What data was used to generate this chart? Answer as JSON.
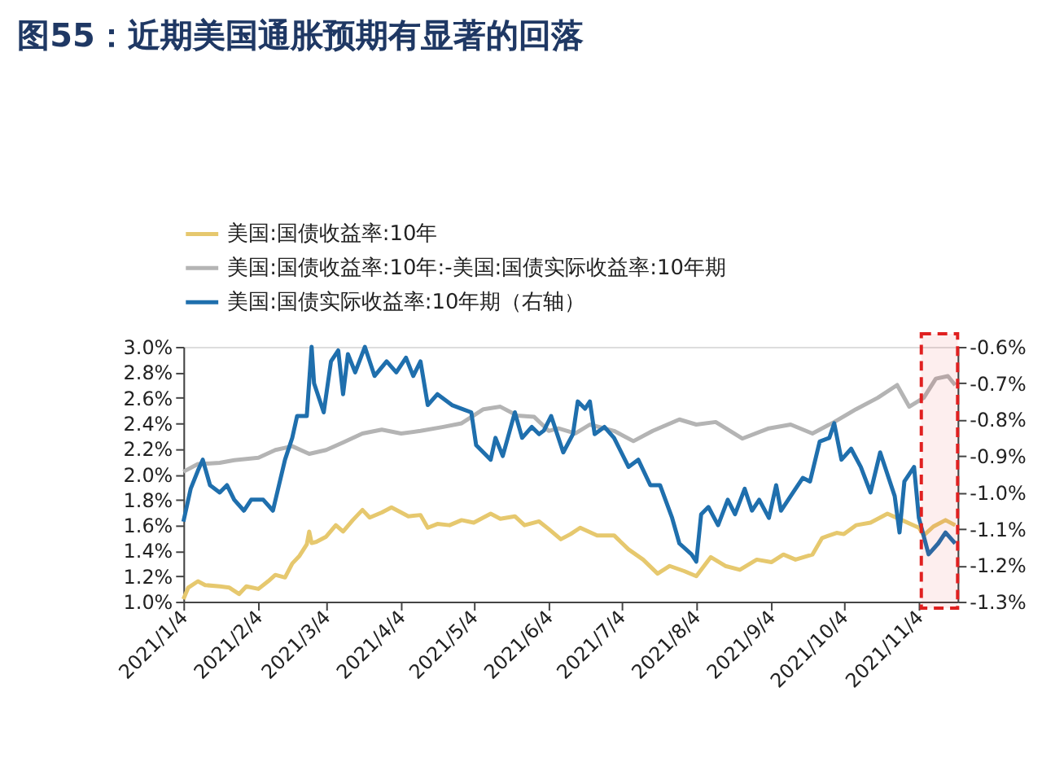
{
  "chart_data": {
    "type": "line",
    "title": "图55：近期美国通胀预期有显著的回落",
    "xlim": [
      "2021-01-04",
      "2021-11-20"
    ],
    "xticks": [
      {
        "value": "2021-01-04",
        "label": "2021/1/4"
      },
      {
        "value": "2021-02-04",
        "label": "2021/2/4"
      },
      {
        "value": "2021-03-04",
        "label": "2021/3/4"
      },
      {
        "value": "2021-04-04",
        "label": "2021/4/4"
      },
      {
        "value": "2021-05-04",
        "label": "2021/5/4"
      },
      {
        "value": "2021-06-04",
        "label": "2021/6/4"
      },
      {
        "value": "2021-07-04",
        "label": "2021/7/4"
      },
      {
        "value": "2021-08-04",
        "label": "2021/8/4"
      },
      {
        "value": "2021-09-04",
        "label": "2021/9/4"
      },
      {
        "value": "2021-10-04",
        "label": "2021/10/4"
      },
      {
        "value": "2021-11-04",
        "label": "2021/11/4"
      }
    ],
    "ylim": [
      1.0,
      3.0
    ],
    "yticks": [
      {
        "value": 1.0,
        "label": "1.0%"
      },
      {
        "value": 1.2,
        "label": "1.2%"
      },
      {
        "value": 1.4,
        "label": "1.4%"
      },
      {
        "value": 1.6,
        "label": "1.6%"
      },
      {
        "value": 1.8,
        "label": "1.8%"
      },
      {
        "value": 2.0,
        "label": "2.0%"
      },
      {
        "value": 2.2,
        "label": "2.2%"
      },
      {
        "value": 2.4,
        "label": "2.4%"
      },
      {
        "value": 2.6,
        "label": "2.6%"
      },
      {
        "value": 2.8,
        "label": "2.8%"
      },
      {
        "value": 3.0,
        "label": "3.0%"
      }
    ],
    "y2lim": [
      -1.3,
      -0.6
    ],
    "y2ticks": [
      {
        "value": -1.3,
        "label": "-1.3%"
      },
      {
        "value": -1.2,
        "label": "-1.2%"
      },
      {
        "value": -1.1,
        "label": "-1.1%"
      },
      {
        "value": -1.0,
        "label": "-1.0%"
      },
      {
        "value": -0.9,
        "label": "-0.9%"
      },
      {
        "value": -0.8,
        "label": "-0.8%"
      },
      {
        "value": -0.7,
        "label": "-0.7%"
      },
      {
        "value": -0.6,
        "label": "-0.6%"
      }
    ],
    "grid": false,
    "legend": "top",
    "bands": [
      {
        "axis": "x",
        "from": "2021-11-05",
        "to": "2021-11-20",
        "color": "#e02020"
      }
    ],
    "series": [
      {
        "name": "美国:国债收益率:10年",
        "color": "#e6c86e",
        "x": [
          "2021-01-04",
          "2021-01-06",
          "2021-01-10",
          "2021-01-13",
          "2021-01-19",
          "2021-01-23",
          "2021-01-27",
          "2021-01-30",
          "2021-02-04",
          "2021-02-08",
          "2021-02-11",
          "2021-02-15",
          "2021-02-18",
          "2021-02-21",
          "2021-02-24",
          "2021-02-25",
          "2021-02-26",
          "2021-02-28",
          "2021-03-04",
          "2021-03-08",
          "2021-03-11",
          "2021-03-15",
          "2021-03-19",
          "2021-03-22",
          "2021-03-27",
          "2021-03-31",
          "2021-04-04",
          "2021-04-07",
          "2021-04-12",
          "2021-04-15",
          "2021-04-19",
          "2021-04-24",
          "2021-04-29",
          "2021-05-04",
          "2021-05-11",
          "2021-05-15",
          "2021-05-21",
          "2021-05-25",
          "2021-05-31",
          "2021-06-04",
          "2021-06-09",
          "2021-06-13",
          "2021-06-17",
          "2021-06-24",
          "2021-07-01",
          "2021-07-07",
          "2021-07-13",
          "2021-07-19",
          "2021-07-24",
          "2021-07-30",
          "2021-08-04",
          "2021-08-10",
          "2021-08-16",
          "2021-08-22",
          "2021-08-29",
          "2021-09-04",
          "2021-09-09",
          "2021-09-14",
          "2021-09-21",
          "2021-09-25",
          "2021-10-01",
          "2021-10-04",
          "2021-10-09",
          "2021-10-15",
          "2021-10-22",
          "2021-10-28",
          "2021-11-04",
          "2021-11-06",
          "2021-11-10",
          "2021-11-15",
          "2021-11-19"
        ],
        "values": [
          1.02,
          1.11,
          1.16,
          1.13,
          1.12,
          1.11,
          1.06,
          1.12,
          1.1,
          1.16,
          1.21,
          1.19,
          1.3,
          1.36,
          1.45,
          1.55,
          1.46,
          1.47,
          1.51,
          1.6,
          1.55,
          1.64,
          1.72,
          1.66,
          1.7,
          1.74,
          1.7,
          1.67,
          1.68,
          1.58,
          1.61,
          1.6,
          1.64,
          1.62,
          1.69,
          1.65,
          1.67,
          1.6,
          1.63,
          1.57,
          1.49,
          1.53,
          1.58,
          1.52,
          1.52,
          1.41,
          1.33,
          1.22,
          1.28,
          1.24,
          1.2,
          1.35,
          1.28,
          1.25,
          1.33,
          1.31,
          1.37,
          1.33,
          1.37,
          1.5,
          1.54,
          1.53,
          1.6,
          1.62,
          1.69,
          1.64,
          1.58,
          1.52,
          1.59,
          1.64,
          1.6
        ]
      },
      {
        "name": "美国:国债收益率:10年:-美国:国债实际收益率:10年期",
        "color": "#b4b4b4",
        "x": [
          "2021-01-04",
          "2021-01-10",
          "2021-01-19",
          "2021-01-25",
          "2021-02-04",
          "2021-02-11",
          "2021-02-18",
          "2021-02-25",
          "2021-03-04",
          "2021-03-11",
          "2021-03-19",
          "2021-03-27",
          "2021-04-04",
          "2021-04-12",
          "2021-04-21",
          "2021-04-29",
          "2021-05-08",
          "2021-05-15",
          "2021-05-22",
          "2021-05-29",
          "2021-06-04",
          "2021-06-08",
          "2021-06-15",
          "2021-06-21",
          "2021-07-01",
          "2021-07-09",
          "2021-07-17",
          "2021-07-28",
          "2021-08-04",
          "2021-08-12",
          "2021-08-23",
          "2021-09-03",
          "2021-09-12",
          "2021-09-21",
          "2021-09-30",
          "2021-10-09",
          "2021-10-18",
          "2021-10-26",
          "2021-10-31",
          "2021-11-06",
          "2021-11-11",
          "2021-11-16",
          "2021-11-19"
        ],
        "values": [
          2.02,
          2.08,
          2.09,
          2.11,
          2.13,
          2.19,
          2.22,
          2.16,
          2.19,
          2.25,
          2.32,
          2.35,
          2.32,
          2.34,
          2.37,
          2.4,
          2.51,
          2.53,
          2.46,
          2.45,
          2.34,
          2.36,
          2.32,
          2.39,
          2.34,
          2.26,
          2.34,
          2.43,
          2.39,
          2.41,
          2.28,
          2.36,
          2.39,
          2.32,
          2.41,
          2.51,
          2.6,
          2.7,
          2.53,
          2.6,
          2.75,
          2.77,
          2.7
        ]
      },
      {
        "name": "美国:国债实际收益率:10年期（右轴）",
        "color": "#1f6fad",
        "axis": "y2",
        "x": [
          "2021-01-04",
          "2021-01-07",
          "2021-01-10",
          "2021-01-12",
          "2021-01-15",
          "2021-01-19",
          "2021-01-22",
          "2021-01-25",
          "2021-01-29",
          "2021-02-01",
          "2021-02-06",
          "2021-02-10",
          "2021-02-15",
          "2021-02-18",
          "2021-02-20",
          "2021-02-24",
          "2021-02-26",
          "2021-02-27",
          "2021-03-03",
          "2021-03-06",
          "2021-03-09",
          "2021-03-11",
          "2021-03-13",
          "2021-03-16",
          "2021-03-20",
          "2021-03-24",
          "2021-03-29",
          "2021-04-02",
          "2021-04-06",
          "2021-04-09",
          "2021-04-12",
          "2021-04-15",
          "2021-04-19",
          "2021-04-25",
          "2021-04-29",
          "2021-05-03",
          "2021-05-05",
          "2021-05-11",
          "2021-05-13",
          "2021-05-16",
          "2021-05-21",
          "2021-05-24",
          "2021-05-28",
          "2021-05-31",
          "2021-06-02",
          "2021-06-05",
          "2021-06-08",
          "2021-06-10",
          "2021-06-14",
          "2021-06-16",
          "2021-06-19",
          "2021-06-21",
          "2021-06-23",
          "2021-06-27",
          "2021-07-01",
          "2021-07-07",
          "2021-07-11",
          "2021-07-16",
          "2021-07-20",
          "2021-07-25",
          "2021-07-28",
          "2021-08-02",
          "2021-08-04",
          "2021-08-06",
          "2021-08-09",
          "2021-08-13",
          "2021-08-17",
          "2021-08-20",
          "2021-08-24",
          "2021-08-27",
          "2021-08-30",
          "2021-09-03",
          "2021-09-06",
          "2021-09-08",
          "2021-09-13",
          "2021-09-17",
          "2021-09-20",
          "2021-09-24",
          "2021-09-28",
          "2021-09-30",
          "2021-10-03",
          "2021-10-07",
          "2021-10-11",
          "2021-10-15",
          "2021-10-19",
          "2021-10-25",
          "2021-10-27",
          "2021-10-29",
          "2021-11-02",
          "2021-11-04",
          "2021-11-08",
          "2021-11-12",
          "2021-11-15",
          "2021-11-19"
        ],
        "values": [
          -1.08,
          -0.99,
          -0.94,
          -0.91,
          -0.98,
          -1.0,
          -0.98,
          -1.02,
          -1.05,
          -1.02,
          -1.02,
          -1.05,
          -0.91,
          -0.85,
          -0.79,
          -0.79,
          -0.6,
          -0.7,
          -0.78,
          -0.64,
          -0.61,
          -0.73,
          -0.62,
          -0.67,
          -0.6,
          -0.68,
          -0.64,
          -0.67,
          -0.63,
          -0.68,
          -0.64,
          -0.76,
          -0.73,
          -0.76,
          -0.77,
          -0.78,
          -0.87,
          -0.91,
          -0.85,
          -0.9,
          -0.78,
          -0.85,
          -0.82,
          -0.84,
          -0.83,
          -0.79,
          -0.85,
          -0.89,
          -0.84,
          -0.75,
          -0.77,
          -0.75,
          -0.84,
          -0.82,
          -0.85,
          -0.93,
          -0.91,
          -0.98,
          -0.98,
          -1.07,
          -1.14,
          -1.17,
          -1.19,
          -1.06,
          -1.04,
          -1.09,
          -1.02,
          -1.06,
          -0.99,
          -1.05,
          -1.02,
          -1.07,
          -0.98,
          -1.05,
          -1.0,
          -0.96,
          -0.97,
          -0.86,
          -0.85,
          -0.81,
          -0.91,
          -0.88,
          -0.93,
          -1.0,
          -0.89,
          -1.01,
          -1.11,
          -0.97,
          -0.93,
          -1.07,
          -1.17,
          -1.14,
          -1.11,
          -1.14
        ]
      }
    ]
  }
}
